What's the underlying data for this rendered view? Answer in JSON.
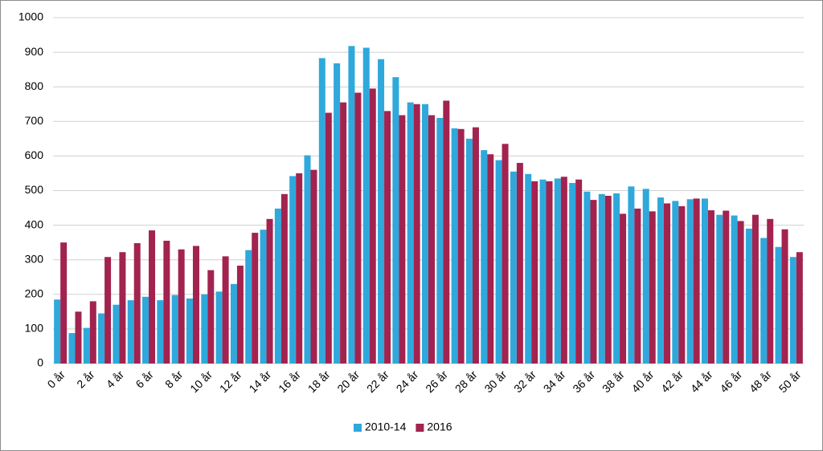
{
  "chart_data": {
    "type": "bar",
    "categories": [
      "0 år",
      null,
      "2 år",
      null,
      "4 år",
      null,
      "6 år",
      null,
      "8 år",
      null,
      "10 år",
      null,
      "12 år",
      null,
      "14 år",
      null,
      "16 år",
      null,
      "18 år",
      null,
      "20 år",
      null,
      "22 år",
      null,
      "24 år",
      null,
      "26 år",
      null,
      "28 år",
      null,
      "30 år",
      null,
      "32 år",
      null,
      "34 år",
      null,
      "36 år",
      null,
      "38 år",
      null,
      "40 år",
      null,
      "42 år",
      null,
      "44 år",
      null,
      "46 år",
      null,
      "48 år",
      null,
      "50 år"
    ],
    "series": [
      {
        "name": "2010-14",
        "color": "#2fa8dc",
        "values": [
          185,
          88,
          103,
          145,
          170,
          183,
          193,
          183,
          198,
          188,
          200,
          208,
          230,
          328,
          387,
          448,
          542,
          602,
          883,
          868,
          918,
          913,
          880,
          828,
          755,
          750,
          710,
          680,
          650,
          617,
          588,
          555,
          548,
          532,
          535,
          522,
          497,
          490,
          492,
          512,
          505,
          480,
          470,
          475,
          477,
          430,
          428,
          390,
          363,
          337,
          308
        ]
      },
      {
        "name": "2016",
        "color": "#a2234f",
        "values": [
          350,
          150,
          180,
          308,
          322,
          348,
          385,
          355,
          330,
          340,
          270,
          310,
          283,
          378,
          418,
          490,
          550,
          560,
          725,
          755,
          783,
          795,
          730,
          718,
          750,
          718,
          760,
          678,
          683,
          605,
          635,
          580,
          527,
          527,
          540,
          532,
          473,
          485,
          433,
          448,
          440,
          463,
          455,
          477,
          443,
          442,
          412,
          430,
          418,
          388,
          322
        ]
      }
    ],
    "ylim": [
      0,
      1000
    ],
    "yticks": [
      0,
      100,
      200,
      300,
      400,
      500,
      600,
      700,
      800,
      900,
      1000
    ],
    "grid": true
  }
}
